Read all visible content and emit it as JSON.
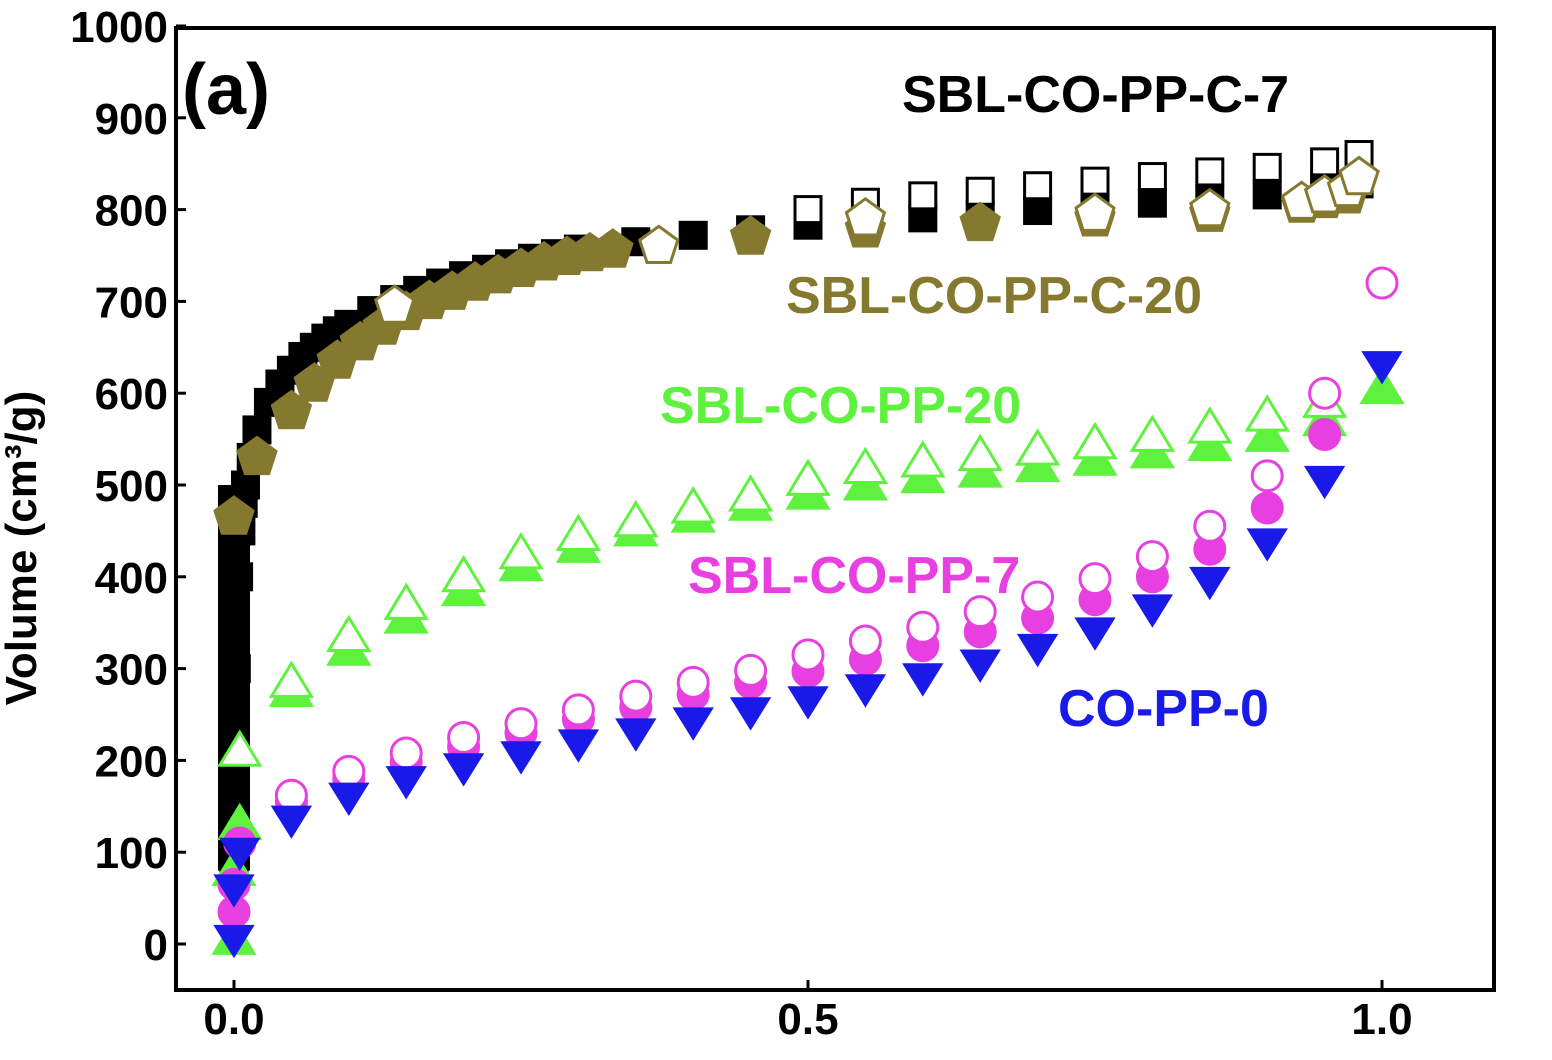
{
  "chart_data": {
    "type": "scatter",
    "panel_label": "(a)",
    "ylabel": "Volume (cm³/g)",
    "xlabel": "",
    "xlim": [
      0.0,
      1.0
    ],
    "ylim": [
      -50,
      1000
    ],
    "x_ticks": [
      0.0,
      0.5,
      1.0
    ],
    "x_tick_labels": [
      "0.0",
      "0.5",
      "1.0"
    ],
    "y_ticks": [
      0,
      100,
      200,
      300,
      400,
      500,
      600,
      700,
      800,
      900,
      1000
    ],
    "y_tick_labels": [
      "0",
      "100",
      "200",
      "300",
      "400",
      "500",
      "600",
      "700",
      "800",
      "900",
      "1000"
    ],
    "series": [
      {
        "name": "SBL-CO-PP-C-7",
        "color": "#000000",
        "marker": "square",
        "adsorption_x": [
          0.0,
          0.001,
          0.002,
          0.004,
          0.006,
          0.008,
          0.01,
          0.015,
          0.02,
          0.03,
          0.04,
          0.05,
          0.06,
          0.07,
          0.08,
          0.09,
          0.1,
          0.12,
          0.14,
          0.16,
          0.18,
          0.2,
          0.22,
          0.24,
          0.26,
          0.28,
          0.3,
          0.35,
          0.4,
          0.45,
          0.5,
          0.55,
          0.6,
          0.65,
          0.7,
          0.75,
          0.8,
          0.85,
          0.9,
          0.95,
          0.98
        ],
        "adsorption_y": [
          80,
          200,
          300,
          400,
          450,
          480,
          500,
          530,
          560,
          590,
          610,
          625,
          640,
          650,
          660,
          668,
          675,
          690,
          702,
          712,
          720,
          728,
          735,
          741,
          747,
          752,
          757,
          765,
          772,
          778,
          783,
          787,
          791,
          795,
          799,
          803,
          807,
          811,
          816,
          822,
          828
        ],
        "desorption_x": [
          0.5,
          0.55,
          0.6,
          0.65,
          0.7,
          0.75,
          0.8,
          0.85,
          0.9,
          0.95,
          0.98
        ],
        "desorption_y": [
          800,
          808,
          815,
          820,
          826,
          831,
          836,
          841,
          846,
          852,
          860
        ]
      },
      {
        "name": "SBL-CO-PP-C-20",
        "color": "#85782f",
        "marker": "pentagon",
        "adsorption_x": [
          0.0,
          0.02,
          0.05,
          0.07,
          0.09,
          0.11,
          0.13,
          0.15,
          0.17,
          0.19,
          0.21,
          0.23,
          0.25,
          0.27,
          0.29,
          0.31,
          0.33,
          0.45,
          0.55,
          0.65,
          0.75,
          0.85,
          0.93,
          0.95,
          0.97
        ],
        "adsorption_y": [
          465,
          530,
          580,
          610,
          635,
          655,
          672,
          688,
          700,
          710,
          720,
          728,
          735,
          742,
          748,
          752,
          756,
          770,
          778,
          785,
          790,
          795,
          805,
          810,
          815
        ],
        "desorption_x": [
          0.14,
          0.37,
          0.55,
          0.75,
          0.85,
          0.93,
          0.95,
          0.97,
          0.98
        ],
        "desorption_y": [
          695,
          760,
          790,
          795,
          800,
          808,
          815,
          822,
          835
        ]
      },
      {
        "name": "SBL-CO-PP-20",
        "color": "#5ef23e",
        "marker": "triangle-up",
        "adsorption_x": [
          0.0,
          0.0,
          0.005,
          0.05,
          0.1,
          0.15,
          0.2,
          0.25,
          0.3,
          0.35,
          0.4,
          0.45,
          0.5,
          0.55,
          0.6,
          0.65,
          0.7,
          0.75,
          0.8,
          0.85,
          0.9,
          0.95,
          1.0
        ],
        "adsorption_y": [
          5,
          80,
          130,
          275,
          320,
          355,
          385,
          412,
          432,
          450,
          465,
          478,
          490,
          500,
          508,
          514,
          520,
          527,
          535,
          543,
          553,
          570,
          605
        ],
        "desorption_x": [
          0.005,
          0.05,
          0.1,
          0.15,
          0.2,
          0.25,
          0.3,
          0.35,
          0.4,
          0.45,
          0.5,
          0.55,
          0.6,
          0.65,
          0.7,
          0.75,
          0.8,
          0.85,
          0.9,
          0.95
        ],
        "desorption_y": [
          210,
          285,
          335,
          370,
          400,
          425,
          445,
          460,
          475,
          488,
          505,
          518,
          525,
          532,
          538,
          545,
          553,
          562,
          575,
          590
        ]
      },
      {
        "name": "SBL-CO-PP-7",
        "color": "#e840e0",
        "marker": "circle",
        "adsorption_x": [
          0.0,
          0.0,
          0.005,
          0.05,
          0.1,
          0.15,
          0.2,
          0.25,
          0.3,
          0.35,
          0.4,
          0.45,
          0.5,
          0.55,
          0.6,
          0.65,
          0.7,
          0.75,
          0.8,
          0.85,
          0.9,
          0.95
        ],
        "adsorption_y": [
          35,
          65,
          110,
          155,
          180,
          198,
          215,
          230,
          245,
          258,
          272,
          285,
          297,
          310,
          325,
          340,
          355,
          375,
          400,
          430,
          475,
          555
        ],
        "desorption_x": [
          0.05,
          0.1,
          0.15,
          0.2,
          0.25,
          0.3,
          0.35,
          0.4,
          0.45,
          0.5,
          0.55,
          0.6,
          0.65,
          0.7,
          0.75,
          0.8,
          0.85,
          0.9,
          0.95,
          1.0
        ],
        "desorption_y": [
          162,
          188,
          208,
          225,
          240,
          255,
          270,
          285,
          298,
          315,
          330,
          345,
          362,
          378,
          398,
          422,
          455,
          510,
          600,
          720
        ]
      },
      {
        "name": "CO-PP-0",
        "color": "#1a1ae8",
        "marker": "triangle-down",
        "adsorption_x": [
          0.0,
          0.0,
          0.005,
          0.05,
          0.1,
          0.15,
          0.2,
          0.25,
          0.3,
          0.35,
          0.4,
          0.45,
          0.5,
          0.55,
          0.6,
          0.65,
          0.7,
          0.75,
          0.8,
          0.85,
          0.9,
          0.95,
          1.0
        ],
        "adsorption_y": [
          5,
          60,
          100,
          135,
          160,
          178,
          192,
          205,
          218,
          230,
          242,
          253,
          265,
          278,
          290,
          305,
          322,
          340,
          365,
          395,
          437,
          505,
          630
        ],
        "desorption_x": [],
        "desorption_y": []
      }
    ],
    "annotations": [
      {
        "text": "SBL-CO-PP-C-7",
        "color": "#000000"
      },
      {
        "text": "SBL-CO-PP-C-20",
        "color": "#85782f"
      },
      {
        "text": "SBL-CO-PP-20",
        "color": "#5ef23e"
      },
      {
        "text": "SBL-CO-PP-7",
        "color": "#e840e0"
      },
      {
        "text": "CO-PP-0",
        "color": "#1a1ae8"
      }
    ]
  }
}
